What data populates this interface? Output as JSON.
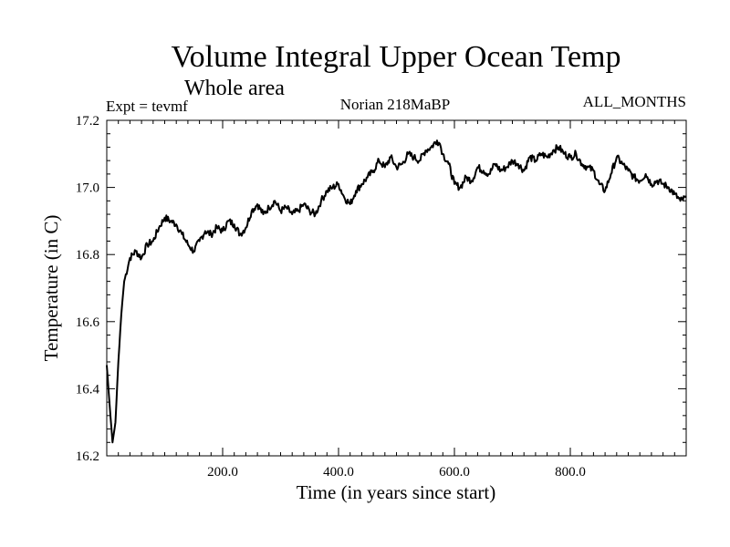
{
  "chart_data": {
    "type": "line",
    "title": "Volume Integral Upper Ocean Temp",
    "subtitle": "Whole area",
    "annotations": {
      "left": "Expt = tevmf",
      "center": "Norian 218MaBP",
      "right": "ALL_MONTHS"
    },
    "xlabel": "Time (in years since start)",
    "ylabel": "Temperature (in C)",
    "xlim": [
      0,
      1000
    ],
    "ylim": [
      16.2,
      17.2
    ],
    "x_ticks": [
      200,
      400,
      600,
      800
    ],
    "x_tick_labels": [
      "200.0",
      "400.0",
      "600.0",
      "800.0"
    ],
    "y_ticks": [
      16.2,
      16.4,
      16.6,
      16.8,
      17.0,
      17.2
    ],
    "y_tick_labels": [
      "16.2",
      "16.4",
      "16.6",
      "16.8",
      "17.0",
      "17.2"
    ],
    "grid": false,
    "series": [
      {
        "name": "Volume Integral Upper Ocean Temp",
        "x": [
          0,
          5,
          10,
          15,
          20,
          25,
          30,
          40,
          50,
          60,
          70,
          80,
          90,
          100,
          110,
          120,
          130,
          140,
          150,
          160,
          170,
          180,
          190,
          200,
          210,
          220,
          230,
          240,
          250,
          260,
          270,
          280,
          290,
          300,
          310,
          320,
          330,
          340,
          350,
          360,
          370,
          380,
          390,
          400,
          410,
          420,
          430,
          440,
          450,
          460,
          470,
          480,
          490,
          500,
          510,
          520,
          530,
          540,
          550,
          560,
          570,
          575,
          580,
          590,
          600,
          610,
          620,
          630,
          640,
          650,
          660,
          670,
          680,
          690,
          700,
          710,
          720,
          730,
          740,
          750,
          760,
          770,
          780,
          790,
          800,
          810,
          820,
          830,
          840,
          850,
          860,
          870,
          880,
          890,
          900,
          910,
          920,
          930,
          940,
          950,
          960,
          970,
          980,
          990,
          1000
        ],
        "values": [
          16.47,
          16.35,
          16.24,
          16.3,
          16.48,
          16.62,
          16.72,
          16.79,
          16.81,
          16.79,
          16.83,
          16.84,
          16.88,
          16.91,
          16.9,
          16.89,
          16.86,
          16.83,
          16.81,
          16.84,
          16.87,
          16.86,
          16.88,
          16.87,
          16.9,
          16.89,
          16.86,
          16.88,
          16.93,
          16.95,
          16.92,
          16.94,
          16.96,
          16.93,
          16.94,
          16.92,
          16.93,
          16.95,
          16.93,
          16.92,
          16.96,
          16.99,
          17.0,
          17.01,
          16.97,
          16.95,
          16.99,
          17.01,
          17.03,
          17.05,
          17.08,
          17.06,
          17.09,
          17.06,
          17.07,
          17.1,
          17.09,
          17.08,
          17.11,
          17.12,
          17.14,
          17.13,
          17.1,
          17.07,
          17.01,
          17.0,
          17.03,
          17.02,
          17.06,
          17.05,
          17.04,
          17.07,
          17.05,
          17.06,
          17.08,
          17.07,
          17.05,
          17.09,
          17.08,
          17.1,
          17.09,
          17.11,
          17.12,
          17.1,
          17.09,
          17.1,
          17.07,
          17.06,
          17.05,
          17.01,
          16.99,
          17.04,
          17.09,
          17.07,
          17.05,
          17.03,
          17.02,
          17.04,
          17.01,
          17.02,
          17.01,
          17.0,
          16.98,
          16.96,
          16.97
        ]
      }
    ]
  }
}
